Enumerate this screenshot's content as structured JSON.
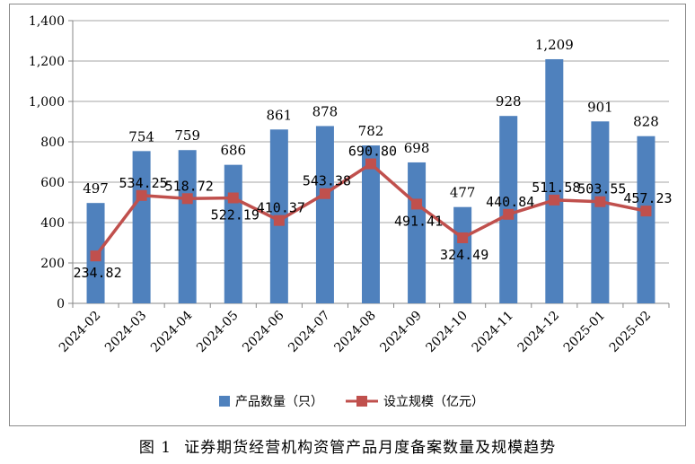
{
  "chart_data": {
    "type": "bar",
    "title": "",
    "xlabel": "",
    "ylabel": "",
    "ylim": [
      0,
      1400
    ],
    "yticks": [
      0,
      200,
      400,
      600,
      800,
      1000,
      1200,
      1400
    ],
    "ytick_labels": [
      "0",
      "200",
      "400",
      "600",
      "800",
      "1,000",
      "1,200",
      "1,400"
    ],
    "grid": true,
    "legend_position": "bottom-center",
    "categories": [
      "2024-02",
      "2024-03",
      "2024-04",
      "2024-05",
      "2024-06",
      "2024-07",
      "2024-08",
      "2024-09",
      "2024-10",
      "2024-11",
      "2024-12",
      "2025-01",
      "2025-02"
    ],
    "series": [
      {
        "name": "产品数量（只）",
        "kind": "bar",
        "color": "#4f81bd",
        "values": [
          497,
          754,
          759,
          686,
          861,
          878,
          782,
          698,
          477,
          928,
          1209,
          901,
          828
        ],
        "labels": [
          "497",
          "754",
          "759",
          "686",
          "861",
          "878",
          "782",
          "698",
          "477",
          "928",
          "1,209",
          "901",
          "828"
        ]
      },
      {
        "name": "设立规模（亿元）",
        "kind": "line",
        "color": "#c0504d",
        "values": [
          234.82,
          534.25,
          518.72,
          522.19,
          410.37,
          543.38,
          690.8,
          491.41,
          324.49,
          440.84,
          511.58,
          503.55,
          457.23
        ],
        "labels": [
          "234.82",
          "534.25",
          "518.72",
          "522.19",
          "410.37",
          "543.38",
          "690.80",
          "491.41",
          "324.49",
          "440.84",
          "511.58",
          "503.55",
          "457.23"
        ]
      }
    ]
  },
  "caption": {
    "figure_number": "图 1",
    "text": "证券期货经营机构资管产品月度备案数量及规模趋势"
  }
}
